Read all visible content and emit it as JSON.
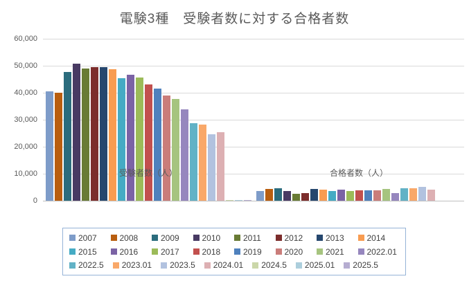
{
  "chart_data": {
    "type": "bar",
    "title": "電験3種　受験者数に対する合格者数",
    "categories": [
      "受験者数（人）",
      "合格者数（人）"
    ],
    "xlabel": "",
    "ylabel": "",
    "ylim": [
      0,
      60000
    ],
    "ytick_interval": 10000,
    "ytick_labels": [
      "0",
      "10,000",
      "20,000",
      "30,000",
      "40,000",
      "50,000",
      "60,000"
    ],
    "grid": true,
    "legend_position": "bottom",
    "legend_rows": [
      8,
      8,
      7
    ],
    "series": [
      {
        "name": "2007",
        "color": "#7E9CC9",
        "values": [
          40600,
          3650
        ]
      },
      {
        "name": "2008",
        "color": "#B95E0F",
        "values": [
          40100,
          4360
        ]
      },
      {
        "name": "2009",
        "color": "#2B6C7D",
        "values": [
          47600,
          4560
        ]
      },
      {
        "name": "2010",
        "color": "#483A63",
        "values": [
          50800,
          3640
        ]
      },
      {
        "name": "2011",
        "color": "#697B35",
        "values": [
          48900,
          2670
        ]
      },
      {
        "name": "2012",
        "color": "#7C2D2C",
        "values": [
          49500,
          2900
        ]
      },
      {
        "name": "2013",
        "color": "#26476E",
        "values": [
          49600,
          4310
        ]
      },
      {
        "name": "2014",
        "color": "#F89C51",
        "values": [
          48700,
          4100
        ]
      },
      {
        "name": "2015",
        "color": "#45ABC4",
        "values": [
          45300,
          3500
        ]
      },
      {
        "name": "2016",
        "color": "#7B63A5",
        "values": [
          46600,
          3980
        ]
      },
      {
        "name": "2017",
        "color": "#9CBB59",
        "values": [
          45700,
          3700
        ]
      },
      {
        "name": "2018",
        "color": "#C2504E",
        "values": [
          43000,
          3920
        ]
      },
      {
        "name": "2019",
        "color": "#4F81BD",
        "values": [
          41500,
          3880
        ]
      },
      {
        "name": "2020",
        "color": "#CA7D7A",
        "values": [
          39000,
          3840
        ]
      },
      {
        "name": "2021",
        "color": "#A6C47F",
        "values": [
          37800,
          4360
        ]
      },
      {
        "name": "2022.01",
        "color": "#9687BE",
        "values": [
          33800,
          2790
        ]
      },
      {
        "name": "2022.5",
        "color": "#62B2C6",
        "values": [
          28800,
          4510
        ]
      },
      {
        "name": "2023.01",
        "color": "#F9A869",
        "values": [
          28200,
          4680
        ]
      },
      {
        "name": "2023.5",
        "color": "#B2C2DF",
        "values": [
          24600,
          5210
        ]
      },
      {
        "name": "2024.01",
        "color": "#DDB0B3",
        "values": [
          25400,
          4060
        ]
      },
      {
        "name": "2024.5",
        "color": "#CBD7A9",
        "values": [
          300,
          0
        ]
      },
      {
        "name": "2025.01",
        "color": "#ACCEDC",
        "values": [
          300,
          0
        ]
      },
      {
        "name": "2025.5",
        "color": "#B6ADD1",
        "values": [
          300,
          0
        ]
      }
    ],
    "style": {
      "title_color": "#595959",
      "tick_label_color": "#595959",
      "legend_text_color": "#404040",
      "gridline_color": "#D9D9D9",
      "axis_line_color": "#BFBFBF",
      "legend_border_color": "#95B3D7",
      "background": "#FFFFFF"
    }
  }
}
